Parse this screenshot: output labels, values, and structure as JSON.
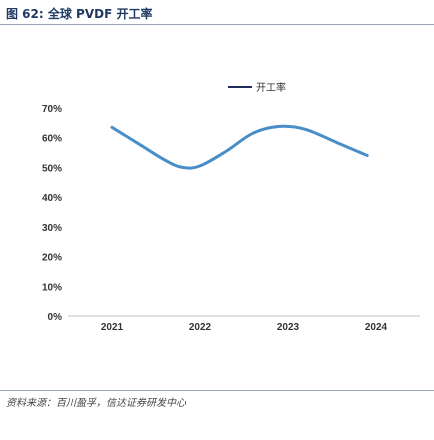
{
  "figure": {
    "title": "图 62: 全球 PVDF 开工率",
    "source": "资料来源：百川盈孚，信达证券研发中心"
  },
  "chart_data": {
    "type": "line",
    "title": "",
    "xlabel": "",
    "ylabel": "",
    "x": [
      "2021",
      "2022",
      "2023",
      "2024"
    ],
    "y_ticks": [
      "0%",
      "10%",
      "20%",
      "30%",
      "40%",
      "50%",
      "60%",
      "70%"
    ],
    "ylim": [
      0,
      0.7
    ],
    "grid": false,
    "legend_position": "top-right",
    "series": [
      {
        "name": "开工率",
        "color": "#4a8ec9",
        "points": [
          {
            "x": 2021.0,
            "y": 0.635
          },
          {
            "x": 2021.3,
            "y": 0.58
          },
          {
            "x": 2021.6,
            "y": 0.525
          },
          {
            "x": 2021.8,
            "y": 0.5
          },
          {
            "x": 2022.0,
            "y": 0.505
          },
          {
            "x": 2022.3,
            "y": 0.555
          },
          {
            "x": 2022.6,
            "y": 0.615
          },
          {
            "x": 2022.9,
            "y": 0.638
          },
          {
            "x": 2023.2,
            "y": 0.628
          },
          {
            "x": 2023.6,
            "y": 0.578
          },
          {
            "x": 2023.9,
            "y": 0.54
          }
        ]
      }
    ]
  }
}
